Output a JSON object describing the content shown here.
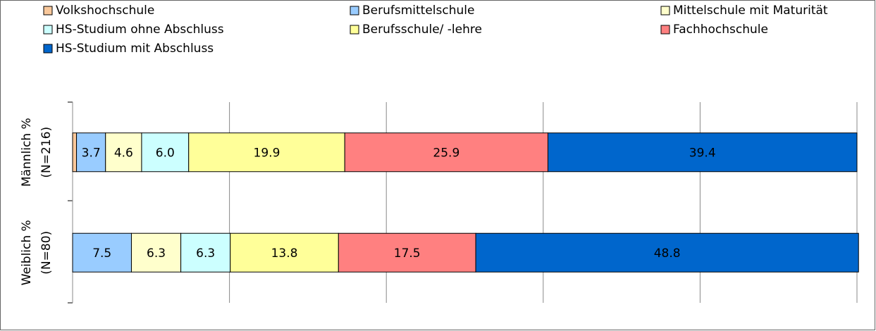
{
  "chart_data": {
    "type": "stacked_barh",
    "categories": [
      [
        "Männlich %",
        "(N=216)"
      ],
      [
        "Weiblich %",
        "(N=80)"
      ]
    ],
    "series": [
      {
        "name": "Volkshochschule",
        "color": "#f9c89b",
        "values": [
          0.5,
          0
        ],
        "value_labels": [
          null,
          null
        ]
      },
      {
        "name": "Berufsmittelschule",
        "color": "#99ccff",
        "values": [
          3.7,
          7.5
        ],
        "value_labels": [
          "3.7",
          "7.5"
        ]
      },
      {
        "name": "Mittelschule mit Maturität",
        "color": "#ffffcc",
        "values": [
          4.6,
          6.3
        ],
        "value_labels": [
          "4.6",
          "6.3"
        ]
      },
      {
        "name": "HS-Studium ohne Abschluss",
        "color": "#ccffff",
        "values": [
          6.0,
          6.3
        ],
        "value_labels": [
          "6.0",
          "6.3"
        ]
      },
      {
        "name": "Berufsschule/ -lehre",
        "color": "#ffff99",
        "values": [
          19.9,
          13.8
        ],
        "value_labels": [
          "19.9",
          "13.8"
        ]
      },
      {
        "name": "Fachhochschule",
        "color": "#ff8080",
        "values": [
          25.9,
          17.5
        ],
        "value_labels": [
          "25.9",
          "17.5"
        ]
      },
      {
        "name": "HS-Studium mit Abschluss",
        "color": "#0066cc",
        "values": [
          39.4,
          48.8
        ],
        "value_labels": [
          "39.4",
          "48.8"
        ]
      }
    ],
    "xlim": [
      0,
      100
    ],
    "xticks": [
      0,
      20,
      40,
      60,
      80,
      100
    ],
    "grid": true
  }
}
